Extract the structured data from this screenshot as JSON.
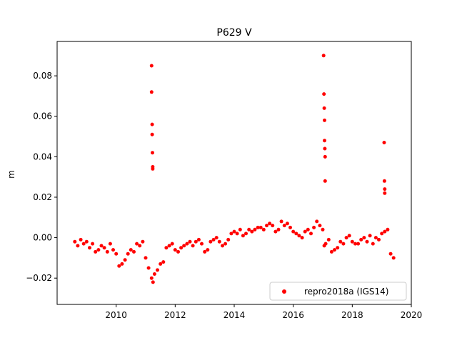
{
  "chart_data": {
    "type": "scatter",
    "title": "P629 V",
    "xlabel": "",
    "ylabel": "m",
    "xlim": [
      2008.0,
      2020.0
    ],
    "ylim": [
      -0.033,
      0.097
    ],
    "xticks": [
      2010,
      2012,
      2014,
      2016,
      2018,
      2020
    ],
    "xtick_labels": [
      "2010",
      "2012",
      "2014",
      "2016",
      "2018",
      "2020"
    ],
    "yticks": [
      -0.02,
      0.0,
      0.02,
      0.04,
      0.06,
      0.08
    ],
    "ytick_labels": [
      "−0.02",
      "0.00",
      "0.02",
      "0.04",
      "0.06",
      "0.08"
    ],
    "grid": false,
    "legend_position": "lower-right",
    "colors": {
      "series": "#ff0000",
      "axes": "#000000",
      "legend_border": "#cccccc"
    },
    "series": [
      {
        "name": "repro2018a (IGS14)",
        "marker": "dot",
        "x": [
          2008.6,
          2008.7,
          2008.8,
          2008.9,
          2009.0,
          2009.1,
          2009.2,
          2009.3,
          2009.4,
          2009.5,
          2009.6,
          2009.7,
          2009.8,
          2009.9,
          2010.0,
          2010.1,
          2010.2,
          2010.3,
          2010.4,
          2010.5,
          2010.6,
          2010.7,
          2010.8,
          2010.9,
          2011.0,
          2011.1,
          2011.2,
          2011.25,
          2011.3,
          2011.4,
          2011.5,
          2011.6,
          2011.7,
          2011.8,
          2011.9,
          2012.0,
          2012.1,
          2012.2,
          2012.3,
          2012.4,
          2012.5,
          2012.6,
          2012.7,
          2012.8,
          2012.9,
          2013.0,
          2013.1,
          2013.2,
          2013.3,
          2013.4,
          2013.5,
          2013.6,
          2013.7,
          2013.8,
          2013.9,
          2014.0,
          2014.1,
          2014.2,
          2014.3,
          2014.4,
          2014.5,
          2014.6,
          2014.7,
          2014.8,
          2014.9,
          2015.0,
          2015.1,
          2015.2,
          2015.3,
          2015.4,
          2015.5,
          2015.6,
          2015.7,
          2015.8,
          2015.9,
          2016.0,
          2016.1,
          2016.2,
          2016.3,
          2016.4,
          2016.5,
          2016.6,
          2016.7,
          2016.8,
          2016.9,
          2017.0,
          2017.05,
          2017.1,
          2017.2,
          2017.3,
          2017.4,
          2017.5,
          2017.6,
          2017.7,
          2017.8,
          2017.9,
          2018.0,
          2018.1,
          2018.2,
          2018.3,
          2018.4,
          2018.5,
          2018.6,
          2018.7,
          2018.8,
          2018.9,
          2019.0,
          2019.1,
          2019.2,
          2019.3,
          2019.4
        ],
        "y": [
          -0.002,
          -0.004,
          -0.001,
          -0.003,
          -0.002,
          -0.005,
          -0.003,
          -0.007,
          -0.006,
          -0.004,
          -0.005,
          -0.007,
          -0.003,
          -0.006,
          -0.008,
          -0.014,
          -0.013,
          -0.011,
          -0.008,
          -0.006,
          -0.007,
          -0.003,
          -0.004,
          -0.002,
          -0.01,
          -0.015,
          -0.02,
          -0.022,
          -0.018,
          -0.016,
          -0.013,
          -0.012,
          -0.005,
          -0.004,
          -0.003,
          -0.006,
          -0.007,
          -0.005,
          -0.004,
          -0.003,
          -0.002,
          -0.004,
          -0.002,
          -0.001,
          -0.003,
          -0.007,
          -0.006,
          -0.002,
          -0.001,
          0.0,
          -0.002,
          -0.004,
          -0.003,
          -0.001,
          0.002,
          0.003,
          0.002,
          0.004,
          0.001,
          0.002,
          0.004,
          0.003,
          0.004,
          0.005,
          0.005,
          0.004,
          0.006,
          0.007,
          0.006,
          0.003,
          0.004,
          0.008,
          0.006,
          0.007,
          0.005,
          0.003,
          0.002,
          0.001,
          0.0,
          0.003,
          0.004,
          0.002,
          0.005,
          0.008,
          0.006,
          0.004,
          -0.004,
          -0.003,
          -0.001,
          -0.007,
          -0.006,
          -0.005,
          -0.002,
          -0.003,
          0.0,
          0.001,
          -0.002,
          -0.003,
          -0.003,
          -0.001,
          0.0,
          -0.002,
          0.001,
          -0.003,
          0.0,
          -0.001,
          0.002,
          0.003,
          0.004,
          -0.008,
          -0.01
        ],
        "outliers_x": [
          2011.2,
          2011.2,
          2011.22,
          2011.22,
          2011.23,
          2011.24,
          2011.24,
          2017.03,
          2017.04,
          2017.05,
          2017.06,
          2017.06,
          2017.07,
          2017.08,
          2017.08,
          2019.08,
          2019.09,
          2019.1,
          2019.1
        ],
        "outliers_y": [
          0.085,
          0.072,
          0.056,
          0.051,
          0.042,
          0.035,
          0.034,
          0.09,
          0.071,
          0.064,
          0.058,
          0.048,
          0.044,
          0.04,
          0.028,
          0.047,
          0.028,
          0.024,
          0.022
        ]
      }
    ]
  }
}
